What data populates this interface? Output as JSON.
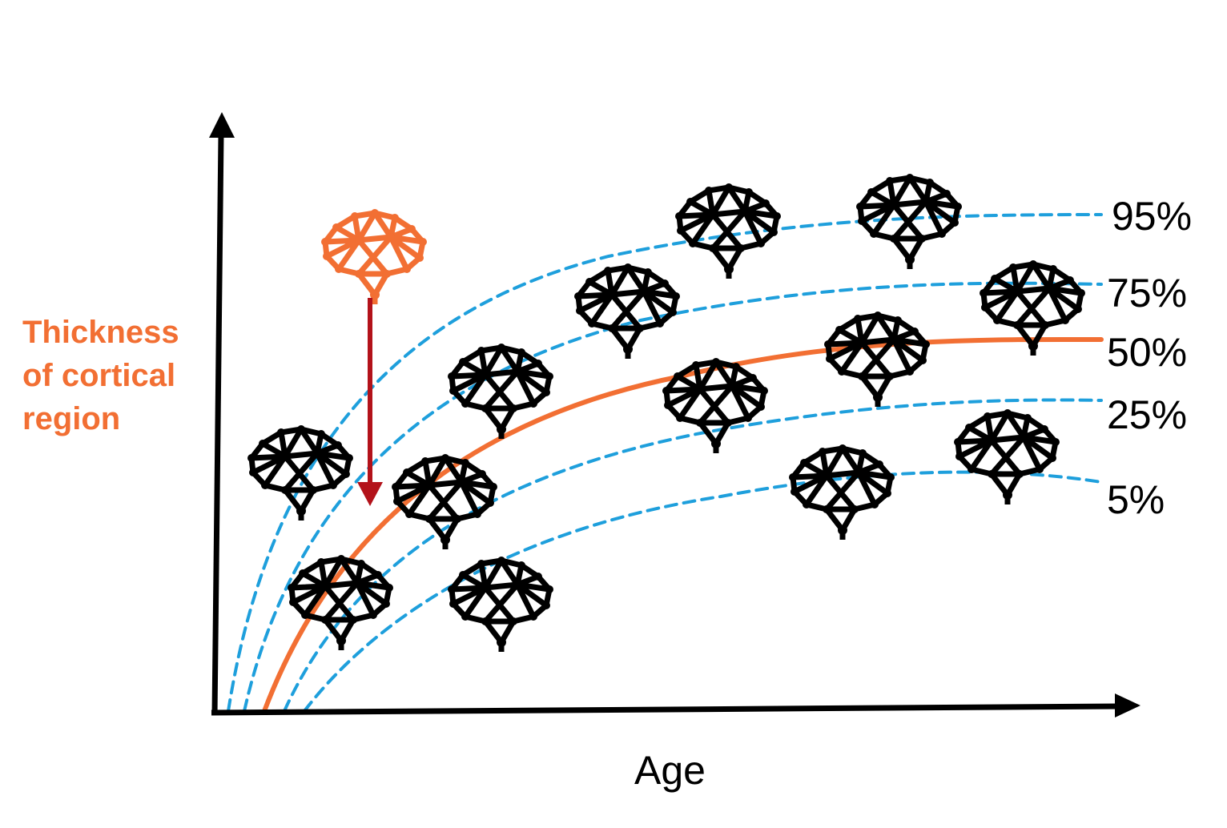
{
  "colors": {
    "axis": "#000000",
    "percentile_curve": "#1e9fdc",
    "median_curve": "#f26f33",
    "highlight_brain": "#f26f33",
    "deviation_arrow": "#b3121a",
    "brain_icon": "#000000"
  },
  "axes": {
    "y_label_lines": [
      "Thickness",
      "of cortical",
      "region"
    ],
    "x_label": "Age"
  },
  "percentile_labels": [
    "95%",
    "75%",
    "50%",
    "25%",
    "5%"
  ],
  "icons": {
    "brain": "brain-network-icon",
    "highlighted_brain": "highlighted-brain-network-icon"
  }
}
